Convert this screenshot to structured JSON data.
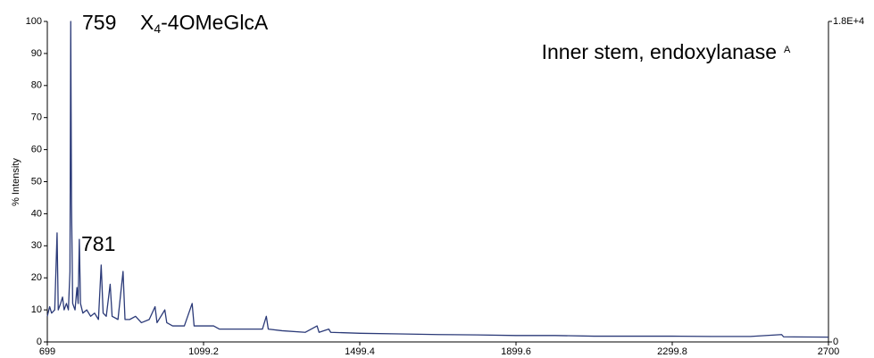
{
  "chart_data": {
    "type": "line",
    "ylabel": "% Intensity",
    "annotations": [
      "759",
      "X",
      "4",
      "-4OMeGlcA",
      "781",
      "Inner stem, endoxylanase",
      "A"
    ],
    "color": "#2b3a78",
    "x": [
      699,
      705,
      710,
      718,
      724,
      727,
      733,
      738,
      742,
      748,
      753,
      757,
      759,
      761,
      764,
      770,
      775,
      778,
      781,
      784,
      790,
      800,
      810,
      820,
      830,
      837,
      842,
      850,
      860,
      865,
      880,
      893,
      898,
      910,
      925,
      940,
      960,
      975,
      980,
      1000,
      1005,
      1020,
      1050,
      1070,
      1075,
      1100,
      1125,
      1140,
      1180,
      1250,
      1260,
      1265,
      1300,
      1360,
      1390,
      1395,
      1420,
      1425,
      1500,
      1600,
      1700,
      1800,
      1900,
      2000,
      2100,
      2200,
      2300,
      2400,
      2500,
      2580,
      2585,
      2700
    ],
    "values": [
      8,
      11,
      9,
      10,
      34,
      10,
      12,
      14,
      10,
      12,
      10,
      22,
      100,
      43,
      12,
      10,
      17,
      12,
      32,
      12,
      9,
      10,
      8,
      9,
      7,
      24,
      9,
      8,
      18,
      8,
      7,
      22,
      7,
      7,
      8,
      6,
      7,
      11,
      6,
      10,
      6,
      5,
      5,
      12,
      5,
      5,
      5,
      4,
      4,
      4,
      8,
      4,
      3.5,
      3,
      5,
      3,
      4,
      3,
      2.7,
      2.5,
      2.3,
      2.2,
      2,
      2,
      1.8,
      1.8,
      1.8,
      1.7,
      1.7,
      2.3,
      1.6,
      1.5
    ],
    "xlim": [
      699,
      2700
    ],
    "xticks": [
      699,
      1099.2,
      1499.4,
      1899.6,
      2299.8,
      2700
    ],
    "ylim": [
      0,
      100
    ],
    "yticks": [
      0,
      10,
      20,
      30,
      40,
      50,
      60,
      70,
      80,
      90,
      100
    ],
    "y2lim": [
      0,
      18000
    ],
    "y2ticks": [
      0,
      {
        "value": 18000,
        "label": "1.8E+4"
      }
    ]
  }
}
